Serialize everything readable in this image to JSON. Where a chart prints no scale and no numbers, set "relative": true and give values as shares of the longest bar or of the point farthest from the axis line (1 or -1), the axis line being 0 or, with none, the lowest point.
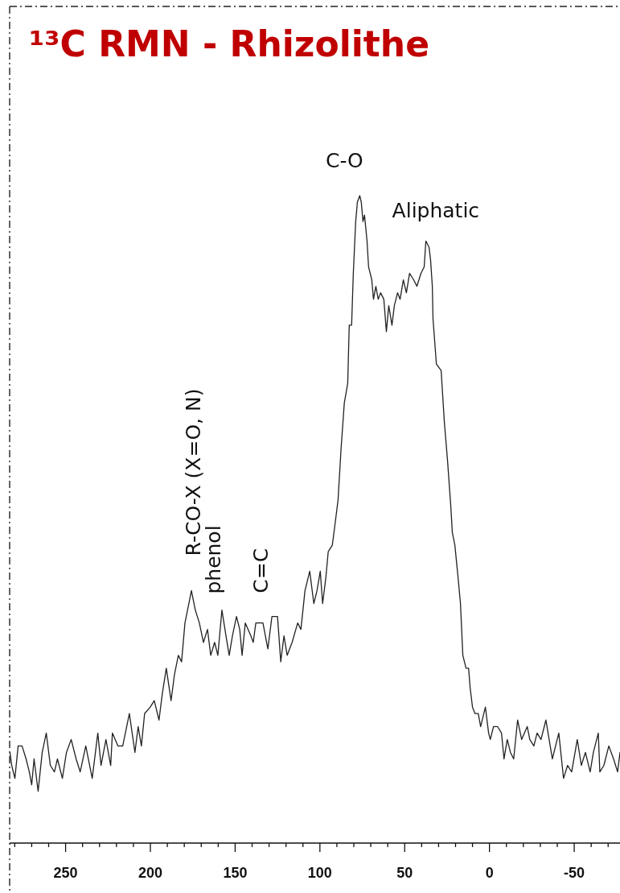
{
  "chart_data": {
    "type": "line",
    "title": "¹³C RMN - Rhizolithe",
    "relative": true,
    "x": [
      282.8,
      281.8,
      279.9,
      278.0,
      275.7,
      273.3,
      271.4,
      270.0,
      268.6,
      266.2,
      263.8,
      261.4,
      259.0,
      256.6,
      254.8,
      251.9,
      249.5,
      246.7,
      243.8,
      241.4,
      238.1,
      234.3,
      231.0,
      229.1,
      226.2,
      223.4,
      222.4,
      219.1,
      216.3,
      212.4,
      209.1,
      207.2,
      205.3,
      203.4,
      200.1,
      197.7,
      194.9,
      193.0,
      190.6,
      187.8,
      185.8,
      183.5,
      181.6,
      179.6,
      177.3,
      175.8,
      173.5,
      171.1,
      168.7,
      166.3,
      164.4,
      162.1,
      160.2,
      157.8,
      155.4,
      153.5,
      151.6,
      149.2,
      147.3,
      145.9,
      144.0,
      140.7,
      139.3,
      137.8,
      133.6,
      130.7,
      128.3,
      125.0,
      123.1,
      121.2,
      119.3,
      116.4,
      113.1,
      111.2,
      108.8,
      106.0,
      103.6,
      101.7,
      99.8,
      98.4,
      96.5,
      95.1,
      92.7,
      91.2,
      89.3,
      87.5,
      85.6,
      83.6,
      82.7,
      81.3,
      80.3,
      78.9,
      77.9,
      76.5,
      75.6,
      74.6,
      73.7,
      72.2,
      71.3,
      69.4,
      68.4,
      67.0,
      65.6,
      64.2,
      62.3,
      60.8,
      59.4,
      57.5,
      56.1,
      54.2,
      52.7,
      50.8,
      49.0,
      47.1,
      44.7,
      42.8,
      40.4,
      38.5,
      37.5,
      35.6,
      34.7,
      33.7,
      33.3,
      31.3,
      28.5,
      26.6,
      24.7,
      22.8,
      21.9,
      20.4,
      18.5,
      17.1,
      15.7,
      13.8,
      12.3,
      11.4,
      10.0,
      8.5,
      6.6,
      5.2,
      2.4,
      0.5,
      -0.5,
      -2.4,
      -4.8,
      -7.1,
      -8.6,
      -10.5,
      -12.4,
      -14.3,
      -16.6,
      -19.0,
      -22.3,
      -23.8,
      -26.2,
      -28.1,
      -30.4,
      -33.3,
      -35.2,
      -37.1,
      -39.0,
      -40.9,
      -43.7,
      -46.1,
      -48.5,
      -51.8,
      -54.2,
      -56.6,
      -59.4,
      -61.3,
      -64.2,
      -65.1,
      -67.5,
      -70.4,
      -73.2,
      -75.6,
      -77.0
    ],
    "series": [
      {
        "color": "#222222",
        "values": [
          0.14,
          0.12,
          0.1,
          0.15,
          0.15,
          0.13,
          0.11,
          0.09,
          0.13,
          0.08,
          0.14,
          0.17,
          0.12,
          0.11,
          0.13,
          0.1,
          0.14,
          0.16,
          0.13,
          0.11,
          0.15,
          0.1,
          0.17,
          0.12,
          0.16,
          0.12,
          0.17,
          0.15,
          0.15,
          0.2,
          0.14,
          0.18,
          0.15,
          0.2,
          0.21,
          0.22,
          0.19,
          0.23,
          0.27,
          0.22,
          0.26,
          0.29,
          0.28,
          0.34,
          0.37,
          0.39,
          0.36,
          0.34,
          0.31,
          0.33,
          0.29,
          0.31,
          0.29,
          0.36,
          0.32,
          0.29,
          0.32,
          0.35,
          0.33,
          0.29,
          0.34,
          0.32,
          0.31,
          0.34,
          0.34,
          0.3,
          0.35,
          0.35,
          0.28,
          0.32,
          0.29,
          0.31,
          0.34,
          0.33,
          0.39,
          0.42,
          0.37,
          0.39,
          0.42,
          0.37,
          0.41,
          0.45,
          0.46,
          0.49,
          0.53,
          0.61,
          0.68,
          0.71,
          0.8,
          0.8,
          0.88,
          0.96,
          0.99,
          1.0,
          0.99,
          0.96,
          0.97,
          0.93,
          0.89,
          0.87,
          0.84,
          0.86,
          0.84,
          0.85,
          0.84,
          0.79,
          0.83,
          0.8,
          0.83,
          0.85,
          0.84,
          0.87,
          0.85,
          0.88,
          0.87,
          0.86,
          0.88,
          0.89,
          0.93,
          0.92,
          0.9,
          0.86,
          0.81,
          0.74,
          0.73,
          0.65,
          0.59,
          0.52,
          0.48,
          0.46,
          0.41,
          0.37,
          0.29,
          0.27,
          0.27,
          0.24,
          0.21,
          0.2,
          0.2,
          0.18,
          0.21,
          0.17,
          0.16,
          0.18,
          0.18,
          0.17,
          0.13,
          0.16,
          0.14,
          0.13,
          0.19,
          0.16,
          0.18,
          0.16,
          0.15,
          0.17,
          0.16,
          0.19,
          0.16,
          0.13,
          0.15,
          0.17,
          0.1,
          0.12,
          0.11,
          0.16,
          0.12,
          0.14,
          0.11,
          0.14,
          0.17,
          0.11,
          0.12,
          0.15,
          0.13,
          0.11,
          0.14
        ]
      }
    ],
    "xlim": [
      283,
      -77
    ],
    "xticks": [
      {
        "value": 280,
        "label": null
      },
      {
        "value": 270,
        "label": null
      },
      {
        "value": 260,
        "label": null
      },
      250,
      {
        "value": 240,
        "label": null
      },
      {
        "value": 230,
        "label": null
      },
      {
        "value": 220,
        "label": null
      },
      {
        "value": 210,
        "label": null
      },
      200,
      {
        "value": 190,
        "label": null
      },
      {
        "value": 180,
        "label": null
      },
      {
        "value": 170,
        "label": null
      },
      {
        "value": 160,
        "label": null
      },
      150,
      {
        "value": 140,
        "label": null
      },
      {
        "value": 130,
        "label": null
      },
      {
        "value": 120,
        "label": null
      },
      {
        "value": 110,
        "label": null
      },
      100,
      {
        "value": 90,
        "label": null
      },
      {
        "value": 80,
        "label": null
      },
      {
        "value": 70,
        "label": null
      },
      {
        "value": 60,
        "label": null
      },
      50,
      {
        "value": 40,
        "label": null
      },
      {
        "value": 30,
        "label": null
      },
      {
        "value": 20,
        "label": null
      },
      {
        "value": 10,
        "label": null
      },
      0,
      {
        "value": -10,
        "label": null
      },
      {
        "value": -20,
        "label": null
      },
      {
        "value": -30,
        "label": null
      },
      {
        "value": -40,
        "label": null
      },
      -50,
      {
        "value": -60,
        "label": null
      },
      {
        "value": -70,
        "label": null
      }
    ],
    "annotations": [
      {
        "text": "C-O",
        "x": 76.5,
        "y": 1.0
      },
      {
        "text": "Aliphatic",
        "x": 37.5,
        "y": 0.93
      },
      {
        "text": "R-CO-X (X=O, N)",
        "x": 175.8,
        "y": 0.39
      },
      {
        "text": "phenol",
        "x": 157.8,
        "y": 0.36
      },
      {
        "text": "C=C",
        "x": 133.6,
        "y": 0.34
      }
    ]
  }
}
